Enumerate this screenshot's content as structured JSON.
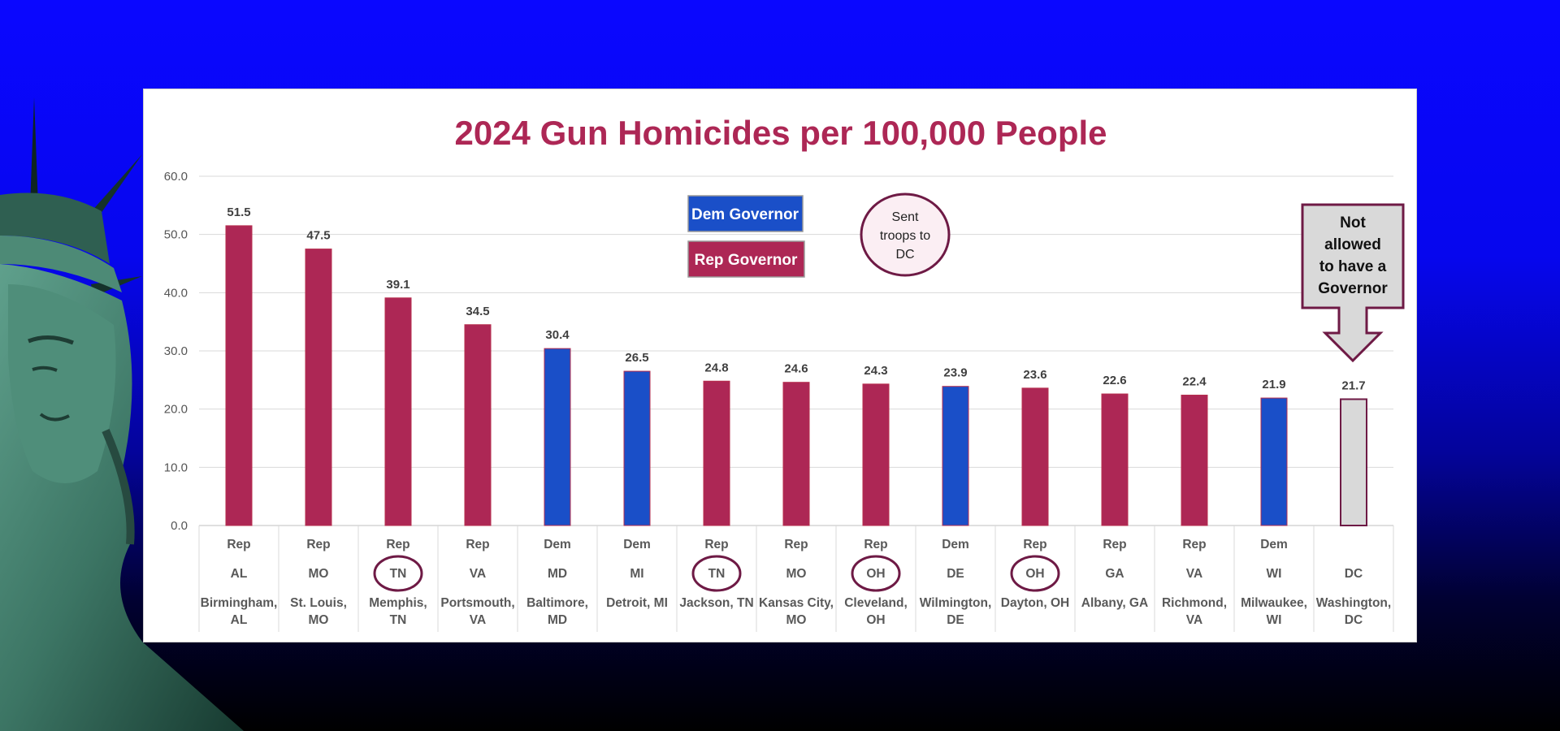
{
  "chart_data": {
    "type": "bar",
    "title": "2024 Gun Homicides per 100,000 People",
    "ylim": [
      0,
      60
    ],
    "yticks": [
      "0.0",
      "10.0",
      "20.0",
      "30.0",
      "40.0",
      "50.0",
      "60.0"
    ],
    "grid": true,
    "categories": [
      {
        "party": "Rep",
        "state": "AL",
        "city": [
          "Birmingham,",
          "AL"
        ],
        "value": 51.5,
        "label": "51.5",
        "circled": false
      },
      {
        "party": "Rep",
        "state": "MO",
        "city": [
          "St. Louis,",
          "MO"
        ],
        "value": 47.5,
        "label": "47.5",
        "circled": false
      },
      {
        "party": "Rep",
        "state": "TN",
        "city": [
          "Memphis,",
          "TN"
        ],
        "value": 39.1,
        "label": "39.1",
        "circled": true
      },
      {
        "party": "Rep",
        "state": "VA",
        "city": [
          "Portsmouth,",
          "VA"
        ],
        "value": 34.5,
        "label": "34.5",
        "circled": false
      },
      {
        "party": "Dem",
        "state": "MD",
        "city": [
          "Baltimore,",
          "MD"
        ],
        "value": 30.4,
        "label": "30.4",
        "circled": false
      },
      {
        "party": "Dem",
        "state": "MI",
        "city": [
          "Detroit, MI"
        ],
        "value": 26.5,
        "label": "26.5",
        "circled": false
      },
      {
        "party": "Rep",
        "state": "TN",
        "city": [
          "Jackson, TN"
        ],
        "value": 24.8,
        "label": "24.8",
        "circled": true
      },
      {
        "party": "Rep",
        "state": "MO",
        "city": [
          "Kansas City,",
          "MO"
        ],
        "value": 24.6,
        "label": "24.6",
        "circled": false
      },
      {
        "party": "Rep",
        "state": "OH",
        "city": [
          "Cleveland,",
          "OH"
        ],
        "value": 24.3,
        "label": "24.3",
        "circled": true
      },
      {
        "party": "Dem",
        "state": "DE",
        "city": [
          "Wilmington,",
          "DE"
        ],
        "value": 23.9,
        "label": "23.9",
        "circled": false
      },
      {
        "party": "Rep",
        "state": "OH",
        "city": [
          "Dayton, OH"
        ],
        "value": 23.6,
        "label": "23.6",
        "circled": true
      },
      {
        "party": "Rep",
        "state": "GA",
        "city": [
          "Albany, GA"
        ],
        "value": 22.6,
        "label": "22.6",
        "circled": false
      },
      {
        "party": "Rep",
        "state": "VA",
        "city": [
          "Richmond,",
          "VA"
        ],
        "value": 22.4,
        "label": "22.4",
        "circled": false
      },
      {
        "party": "Dem",
        "state": "WI",
        "city": [
          "Milwaukee,",
          "WI"
        ],
        "value": 21.9,
        "label": "21.9",
        "circled": false
      },
      {
        "party": "",
        "state": "DC",
        "city": [
          "Washington,",
          "DC"
        ],
        "value": 21.7,
        "label": "21.7",
        "circled": false
      }
    ],
    "legend": [
      {
        "label": "Dem Governor",
        "color": "#1a4fc8"
      },
      {
        "label": "Rep Governor",
        "color": "#ad2755"
      }
    ],
    "annotations": {
      "circle_note": [
        "Sent",
        "troops to",
        "DC"
      ],
      "dc_note": [
        "Not",
        "allowed",
        "to have a",
        "Governor"
      ]
    }
  },
  "colors": {
    "dem": "#1a4fc8",
    "rep": "#ad2755",
    "dc": "#d9d9d9",
    "title": "#ad2755",
    "circle": "#6e1a45"
  }
}
